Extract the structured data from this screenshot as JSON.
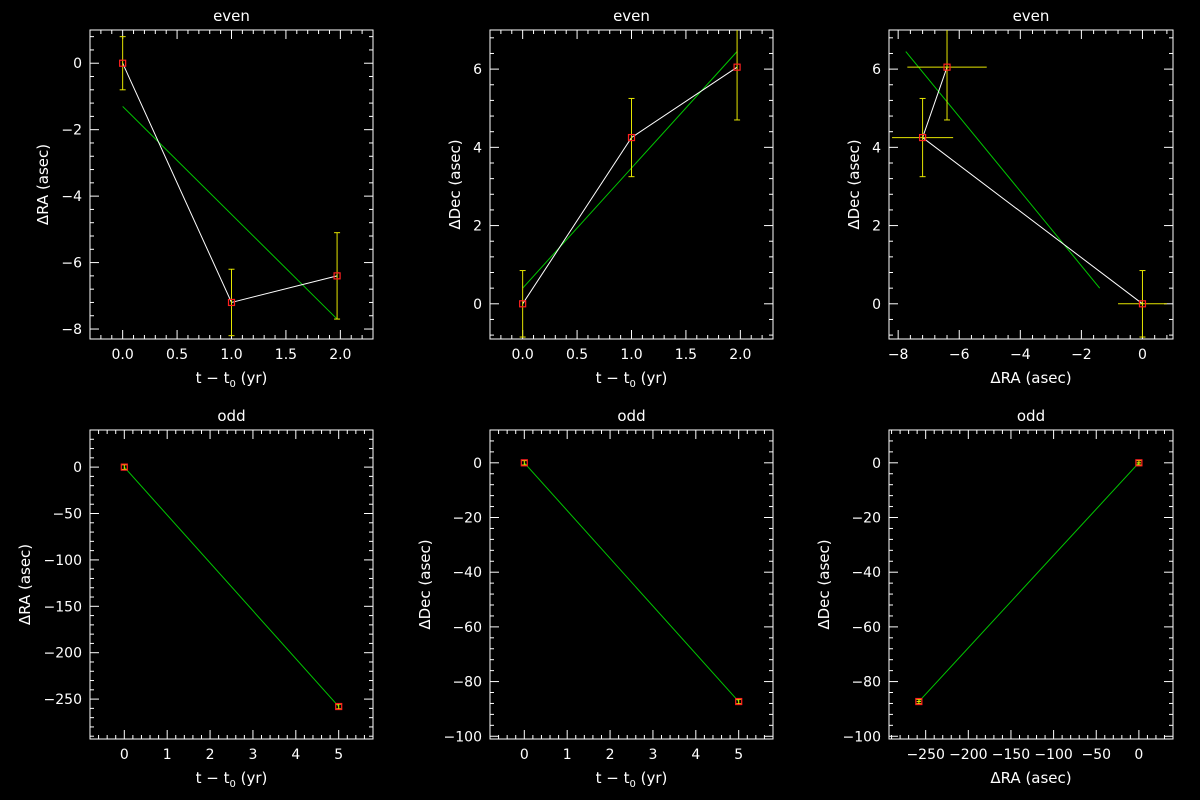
{
  "colors": {
    "background": "#000000",
    "axes": "#ffffff",
    "data_line": "#ffffff",
    "fit_line": "#00c800",
    "error_bar": "#e6e600",
    "marker": "#ff2020"
  },
  "chart_data": [
    {
      "type": "line",
      "title": "even",
      "xlabel": "t − t",
      "xlabel_sub": "0",
      "xlabel_tail": " (yr)",
      "ylabel": "ΔRA (asec)",
      "xlim": [
        -0.3,
        2.3
      ],
      "ylim": [
        -8.3,
        1.0
      ],
      "xticks": [
        0,
        0.5,
        1,
        1.5,
        2
      ],
      "xtick_labels": [
        "0.0",
        "0.5",
        "1.0",
        "1.5",
        "2.0"
      ],
      "yticks": [
        -8,
        -6,
        -4,
        -2,
        0
      ],
      "ytick_labels": [
        "−8",
        "−6",
        "−4",
        "−2",
        "0"
      ],
      "xminor": 5,
      "yminor": 5,
      "points": [
        {
          "x": 0.0,
          "y": 0.0,
          "yerr": 0.8
        },
        {
          "x": 1.0,
          "y": -7.2,
          "yerr": 1.0
        },
        {
          "x": 1.97,
          "y": -6.4,
          "yerr": 1.3
        }
      ],
      "fit": [
        {
          "x": 0.0,
          "y": -1.3
        },
        {
          "x": 1.97,
          "y": -7.7
        }
      ]
    },
    {
      "type": "line",
      "title": "even",
      "xlabel": "t − t",
      "xlabel_sub": "0",
      "xlabel_tail": " (yr)",
      "ylabel": "ΔDec (asec)",
      "xlim": [
        -0.3,
        2.3
      ],
      "ylim": [
        -0.9,
        7.0
      ],
      "xticks": [
        0,
        0.5,
        1,
        1.5,
        2
      ],
      "xtick_labels": [
        "0.0",
        "0.5",
        "1.0",
        "1.5",
        "2.0"
      ],
      "yticks": [
        0,
        2,
        4,
        6
      ],
      "ytick_labels": [
        "0",
        "2",
        "4",
        "6"
      ],
      "xminor": 5,
      "yminor": 5,
      "points": [
        {
          "x": 0.0,
          "y": 0.0,
          "yerr": 0.85
        },
        {
          "x": 1.0,
          "y": 4.25,
          "yerr": 1.0
        },
        {
          "x": 1.97,
          "y": 6.05,
          "yerr": 1.35
        }
      ],
      "fit": [
        {
          "x": 0.0,
          "y": 0.4
        },
        {
          "x": 1.97,
          "y": 6.45
        }
      ]
    },
    {
      "type": "line",
      "title": "even",
      "xlabel": "ΔRA (asec)",
      "xlabel_sub": "",
      "xlabel_tail": "",
      "ylabel": "ΔDec (asec)",
      "xlim": [
        -8.3,
        1.0
      ],
      "ylim": [
        -0.9,
        7.0
      ],
      "xticks": [
        -8,
        -6,
        -4,
        -2,
        0
      ],
      "xtick_labels": [
        "−8",
        "−6",
        "−4",
        "−2",
        "0"
      ],
      "yticks": [
        0,
        2,
        4,
        6
      ],
      "ytick_labels": [
        "0",
        "2",
        "4",
        "6"
      ],
      "xminor": 5,
      "yminor": 5,
      "points": [
        {
          "x": 0.0,
          "y": 0.0,
          "xerr": 0.8,
          "yerr": 0.85
        },
        {
          "x": -7.2,
          "y": 4.25,
          "xerr": 1.0,
          "yerr": 1.0
        },
        {
          "x": -6.4,
          "y": 6.05,
          "xerr": 1.3,
          "yerr": 1.35
        }
      ],
      "connect_order": [
        0,
        1,
        2
      ],
      "fit": [
        {
          "x": -1.4,
          "y": 0.4
        },
        {
          "x": -7.75,
          "y": 6.45
        }
      ]
    },
    {
      "type": "line",
      "title": "odd",
      "xlabel": "t − t",
      "xlabel_sub": "0",
      "xlabel_tail": " (yr)",
      "ylabel": "ΔRA (asec)",
      "xlim": [
        -0.8,
        5.8
      ],
      "ylim": [
        -293,
        40
      ],
      "xticks": [
        0,
        1,
        2,
        3,
        4,
        5
      ],
      "xtick_labels": [
        "0",
        "1",
        "2",
        "3",
        "4",
        "5"
      ],
      "yticks": [
        -250,
        -200,
        -150,
        -100,
        -50,
        0
      ],
      "ytick_labels": [
        "−250",
        "−200",
        "−150",
        "−100",
        "−50",
        "0"
      ],
      "xminor": 5,
      "yminor": 5,
      "points": [
        {
          "x": 0.0,
          "y": 0.0,
          "yerr": 2.5
        },
        {
          "x": 5.0,
          "y": -258.0,
          "yerr": 2.5
        }
      ],
      "fit": [
        {
          "x": 0.0,
          "y": 0.0
        },
        {
          "x": 5.0,
          "y": -258.0
        }
      ]
    },
    {
      "type": "line",
      "title": "odd",
      "xlabel": "t − t",
      "xlabel_sub": "0",
      "xlabel_tail": " (yr)",
      "ylabel": "ΔDec (asec)",
      "xlim": [
        -0.8,
        5.8
      ],
      "ylim": [
        -101,
        12
      ],
      "xticks": [
        0,
        1,
        2,
        3,
        4,
        5
      ],
      "xtick_labels": [
        "0",
        "1",
        "2",
        "3",
        "4",
        "5"
      ],
      "yticks": [
        -100,
        -80,
        -60,
        -40,
        -20,
        0
      ],
      "ytick_labels": [
        "−100",
        "−80",
        "−60",
        "−40",
        "−20",
        "0"
      ],
      "xminor": 5,
      "yminor": 5,
      "points": [
        {
          "x": 0.0,
          "y": 0.0,
          "yerr": 0.8
        },
        {
          "x": 5.0,
          "y": -87.3,
          "yerr": 0.8
        }
      ],
      "fit": [
        {
          "x": 0.0,
          "y": 0.0
        },
        {
          "x": 5.0,
          "y": -87.3
        }
      ]
    },
    {
      "type": "line",
      "title": "odd",
      "xlabel": "ΔRA (asec)",
      "xlabel_sub": "",
      "xlabel_tail": "",
      "ylabel": "ΔDec (asec)",
      "xlim": [
        -293,
        40
      ],
      "ylim": [
        -101,
        12
      ],
      "xticks": [
        -250,
        -200,
        -150,
        -100,
        -50,
        0
      ],
      "xtick_labels": [
        "−250",
        "−200",
        "−150",
        "−100",
        "−50",
        "0"
      ],
      "yticks": [
        -100,
        -80,
        -60,
        -40,
        -20,
        0
      ],
      "ytick_labels": [
        "−100",
        "−80",
        "−60",
        "−40",
        "−20",
        "0"
      ],
      "xminor": 5,
      "yminor": 5,
      "points": [
        {
          "x": 0.0,
          "y": 0.0,
          "xerr": 2.5,
          "yerr": 0.8
        },
        {
          "x": -258.0,
          "y": -87.3,
          "xerr": 2.5,
          "yerr": 0.8
        }
      ],
      "fit": [
        {
          "x": 0.0,
          "y": 0.0
        },
        {
          "x": -258.0,
          "y": -87.3
        }
      ]
    }
  ]
}
